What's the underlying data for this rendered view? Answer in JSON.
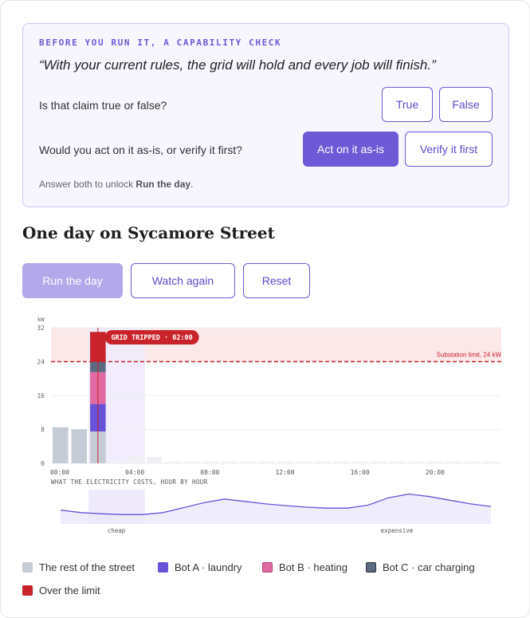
{
  "check": {
    "title": "BEFORE YOU RUN IT, A CAPABILITY CHECK",
    "claim": "“With your current rules, the grid will hold and every job will finish.”",
    "q1": "Is that claim true or false?",
    "q1_options": [
      "True",
      "False"
    ],
    "q2": "Would you act on it as-is, or verify it first?",
    "q2_options": [
      "Act on it as-is",
      "Verify it first"
    ],
    "q2_selected": "Act on it as-is",
    "hint_prefix": "Answer both to unlock ",
    "hint_bold": "Run the day",
    "hint_suffix": "."
  },
  "heading": "One day on Sycamore Street",
  "controls": {
    "run": "Run the day",
    "watch": "Watch again",
    "reset": "Reset"
  },
  "chart_data": {
    "type": "bar",
    "ylabel": "kW",
    "y_ticks": [
      "32",
      "24",
      "16",
      "8",
      "0"
    ],
    "ylim": [
      0,
      32
    ],
    "x_ticks": [
      "00:00",
      "04:00",
      "08:00",
      "12:00",
      "16:00",
      "20:00"
    ],
    "limit_label": "Substation limit, 24 kW",
    "limit_value": 24,
    "trip_label": "GRID TRIPPED · 02:00",
    "trip_hour": 2,
    "cheap_label": "CHEA",
    "cheap_window_hours": [
      2,
      5
    ],
    "rest_of_street_kw": [
      8.5,
      8.0,
      7.5,
      0.5,
      1.5,
      1.5,
      0.4,
      0.4,
      0.4,
      0.4,
      0.4,
      0.4,
      0.4,
      0.4,
      0.4,
      0.4,
      0.4,
      0.4,
      0.4,
      0.4,
      0.4,
      0.4,
      0.4,
      0.4
    ],
    "stacked_at_trip": {
      "bot_a_laundry": 6.5,
      "bot_b_heating": 7.5,
      "bot_c_car_charging": 2.5,
      "over_the_limit": 7.0
    },
    "series": [
      {
        "name": "The rest of the street",
        "color": "#c5ccd6"
      },
      {
        "name": "Bot A · laundry",
        "color": "#6a52d8"
      },
      {
        "name": "Bot B · heating",
        "color": "#e06aa1"
      },
      {
        "name": "Bot C · car charging",
        "color": "#5b6a80"
      },
      {
        "name": "Over the limit",
        "color": "#c8232b"
      }
    ],
    "price_title": "WHAT THE ELECTRICITY COSTS, HOUR BY HOUR",
    "price_low_label": "cheap",
    "price_high_label": "expensive",
    "price_curve": [
      0.3,
      0.2,
      0.15,
      0.12,
      0.12,
      0.2,
      0.4,
      0.6,
      0.75,
      0.65,
      0.55,
      0.48,
      0.42,
      0.38,
      0.38,
      0.5,
      0.8,
      0.95,
      0.85,
      0.7,
      0.55,
      0.45
    ]
  },
  "legend": [
    "The rest of the street",
    "Bot A · laundry",
    "Bot B · heating",
    "Bot C · car charging",
    "Over the limit"
  ]
}
